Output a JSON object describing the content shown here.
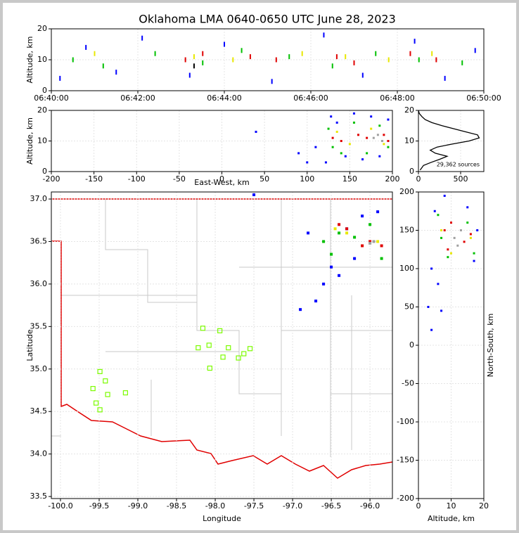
{
  "chart_data": [
    {
      "type": "scatter",
      "title": "Oklahoma LMA 0640-0650 UTC June 28, 2023",
      "ylabel": "Altitude, km",
      "xlim": [
        0,
        10
      ],
      "xticks": [
        {
          "value": 0,
          "label": "06:40:00"
        },
        {
          "value": 2,
          "label": "06:42:00"
        },
        {
          "value": 4,
          "label": "06:44:00"
        },
        {
          "value": 6,
          "label": "06:46:00"
        },
        {
          "value": 8,
          "label": "06:48:00"
        },
        {
          "value": 10,
          "label": "06:50:00"
        }
      ],
      "ylim": [
        0,
        20
      ],
      "yticks": [
        0,
        10,
        20
      ],
      "grid": true,
      "series": [
        {
          "color": "#0000ff",
          "x": [
            0.2,
            0.8,
            1.5,
            2.1,
            3.2,
            4.0,
            5.1,
            6.3,
            7.2,
            8.4,
            9.1,
            9.8
          ],
          "y": [
            4,
            14,
            6,
            17,
            5,
            15,
            3,
            18,
            5,
            16,
            4,
            13
          ]
        },
        {
          "color": "#00c000",
          "x": [
            0.5,
            1.2,
            2.4,
            3.5,
            4.4,
            5.5,
            6.5,
            7.5,
            8.5,
            9.5
          ],
          "y": [
            10,
            8,
            12,
            9,
            13,
            11,
            8,
            12,
            10,
            9
          ]
        },
        {
          "color": "#e8e800",
          "x": [
            1.0,
            3.3,
            4.2,
            5.8,
            6.8,
            7.8,
            8.8
          ],
          "y": [
            12,
            11,
            10,
            12,
            11,
            10,
            12
          ]
        },
        {
          "color": "#e00000",
          "x": [
            3.1,
            3.5,
            4.6,
            5.2,
            6.6,
            7.0,
            8.3,
            8.9
          ],
          "y": [
            10,
            12,
            11,
            10,
            11,
            9,
            12,
            10
          ]
        },
        {
          "color": "#000000",
          "x": [
            3.3
          ],
          "y": [
            8
          ]
        }
      ]
    },
    {
      "type": "scatter",
      "xlabel": "East-West, km",
      "ylabel": "Altitude, km",
      "xlim": [
        -200,
        200
      ],
      "xticks": [
        -200,
        -150,
        -100,
        -50,
        0,
        50,
        100,
        150,
        200
      ],
      "ylim": [
        0,
        20
      ],
      "yticks": [
        0,
        10,
        20
      ],
      "grid": true,
      "series": [
        {
          "color": "#0000ff",
          "x": [
            122,
            128,
            135,
            145,
            155,
            165,
            175,
            185,
            195,
            110,
            100,
            90,
            40
          ],
          "y": [
            3,
            18,
            16,
            5,
            19,
            4,
            18,
            5,
            17,
            8,
            3,
            6,
            13
          ]
        },
        {
          "color": "#00c000",
          "x": [
            125,
            140,
            155,
            170,
            185,
            195,
            130
          ],
          "y": [
            14,
            6,
            16,
            6,
            15,
            8,
            8
          ]
        },
        {
          "color": "#e8e800",
          "x": [
            135,
            150,
            175,
            190
          ],
          "y": [
            13,
            9,
            14,
            9
          ]
        },
        {
          "color": "#e00000",
          "x": [
            130,
            140,
            160,
            170,
            190,
            195
          ],
          "y": [
            11,
            10,
            12,
            11,
            12,
            10
          ]
        },
        {
          "color": "#a0a0a0",
          "x": [
            178,
            183,
            188
          ],
          "y": [
            11,
            12,
            10
          ]
        }
      ]
    },
    {
      "type": "line",
      "annotation": "29,362 sources",
      "xlim": [
        0,
        775
      ],
      "xticks": [
        0,
        500
      ],
      "ylim": [
        0,
        20
      ],
      "yticks": [
        0,
        10,
        20
      ],
      "grid": true,
      "series": [
        {
          "color": "#000000",
          "x": [
            20,
            60,
            150,
            250,
            340,
            200,
            140,
            220,
            400,
            600,
            720,
            700,
            560,
            420,
            280,
            160,
            80,
            40,
            10,
            0
          ],
          "y": [
            0.5,
            2,
            3,
            4,
            5,
            6,
            7,
            8,
            9,
            10,
            11,
            12,
            13,
            14,
            15,
            16,
            17,
            18,
            19,
            20
          ]
        }
      ]
    },
    {
      "type": "scatter",
      "xlabel": "Longitude",
      "ylabel": "Latitude",
      "xlim": [
        -100.118,
        -95.71
      ],
      "xticks": [
        {
          "value": -100,
          "label": "-100.0"
        },
        {
          "value": -99.5,
          "label": "-99.5"
        },
        {
          "value": -99,
          "label": "-99.0"
        },
        {
          "value": -98.5,
          "label": "-98.5"
        },
        {
          "value": -98,
          "label": "-98.0"
        },
        {
          "value": -97.5,
          "label": "-97.5"
        },
        {
          "value": -97,
          "label": "-97.0"
        },
        {
          "value": -96.5,
          "label": "-96.5"
        },
        {
          "value": -96,
          "label": "-96.0"
        }
      ],
      "ylim": [
        33.476,
        37.083
      ],
      "yticks": [
        {
          "value": 33.5,
          "label": "33.5"
        },
        {
          "value": 34,
          "label": "34.0"
        },
        {
          "value": 34.5,
          "label": "34.5"
        },
        {
          "value": 35,
          "label": "35.0"
        },
        {
          "value": 35.5,
          "label": "35.5"
        },
        {
          "value": 36,
          "label": "36.0"
        },
        {
          "value": 36.5,
          "label": "36.5"
        },
        {
          "value": 37,
          "label": "37.0"
        }
      ],
      "grid": true,
      "series": [
        {
          "color": "#0000ff",
          "x": [
            -96.9,
            -96.7,
            -96.6,
            -96.5,
            -96.3,
            -96.1,
            -95.9,
            -96.8,
            -96.4,
            -97.5,
            -96.2
          ],
          "y": [
            35.7,
            35.8,
            36.0,
            36.2,
            36.65,
            36.8,
            36.85,
            36.6,
            36.1,
            37.05,
            36.3
          ]
        },
        {
          "color": "#00c000",
          "x": [
            -96.6,
            -96.4,
            -96.2,
            -96.0,
            -95.85,
            -96.5
          ],
          "y": [
            36.5,
            36.6,
            36.55,
            36.7,
            36.3,
            36.35
          ]
        },
        {
          "color": "#e8e800",
          "x": [
            -96.45,
            -96.1,
            -95.9,
            -96.3
          ],
          "y": [
            36.65,
            36.45,
            36.5,
            36.6
          ]
        },
        {
          "color": "#e00000",
          "x": [
            -96.4,
            -96.3,
            -96.1,
            -96.0,
            -95.85
          ],
          "y": [
            36.7,
            36.65,
            36.45,
            36.5,
            36.45
          ]
        },
        {
          "color": "#a0a0a0",
          "x": [
            -96.0,
            -95.95
          ],
          "y": [
            36.48,
            36.5
          ]
        },
        {
          "color": "#7cfc00",
          "marker": "hollow-square",
          "x": [
            -98.16,
            -97.94,
            -98.22,
            -98.08,
            -97.83,
            -97.55,
            -97.63,
            -97.9,
            -97.7,
            -98.07,
            -99.49,
            -99.42,
            -99.58,
            -99.39,
            -99.16,
            -99.54,
            -99.49
          ],
          "y": [
            35.48,
            35.45,
            35.25,
            35.28,
            35.25,
            35.24,
            35.18,
            35.14,
            35.13,
            35.01,
            34.97,
            34.86,
            34.77,
            34.7,
            34.72,
            34.6,
            34.52
          ]
        }
      ]
    },
    {
      "type": "scatter",
      "xlabel": "Altitude, km",
      "ylabel": "North-South, km",
      "ylabel_position": "right",
      "xlim": [
        0,
        20
      ],
      "xticks": [
        0,
        10,
        20
      ],
      "ylim": [
        -200,
        200
      ],
      "yticks": [
        -200,
        -150,
        -100,
        -50,
        0,
        50,
        100,
        150,
        200
      ],
      "grid": true,
      "series": [
        {
          "color": "#0000ff",
          "x": [
            5,
            4,
            6,
            3,
            8,
            15,
            17,
            18,
            7,
            4
          ],
          "y": [
            175,
            100,
            80,
            50,
            195,
            180,
            110,
            150,
            45,
            20
          ]
        },
        {
          "color": "#00c000",
          "x": [
            6,
            9,
            15,
            17,
            7
          ],
          "y": [
            170,
            115,
            160,
            120,
            140
          ]
        },
        {
          "color": "#e8e800",
          "x": [
            7,
            16,
            10
          ],
          "y": [
            150,
            140,
            120
          ]
        },
        {
          "color": "#e00000",
          "x": [
            8,
            10,
            14,
            16,
            9
          ],
          "y": [
            150,
            160,
            135,
            145,
            125
          ]
        },
        {
          "color": "#a0a0a0",
          "x": [
            11,
            12,
            13
          ],
          "y": [
            140,
            130,
            150
          ]
        }
      ]
    }
  ]
}
